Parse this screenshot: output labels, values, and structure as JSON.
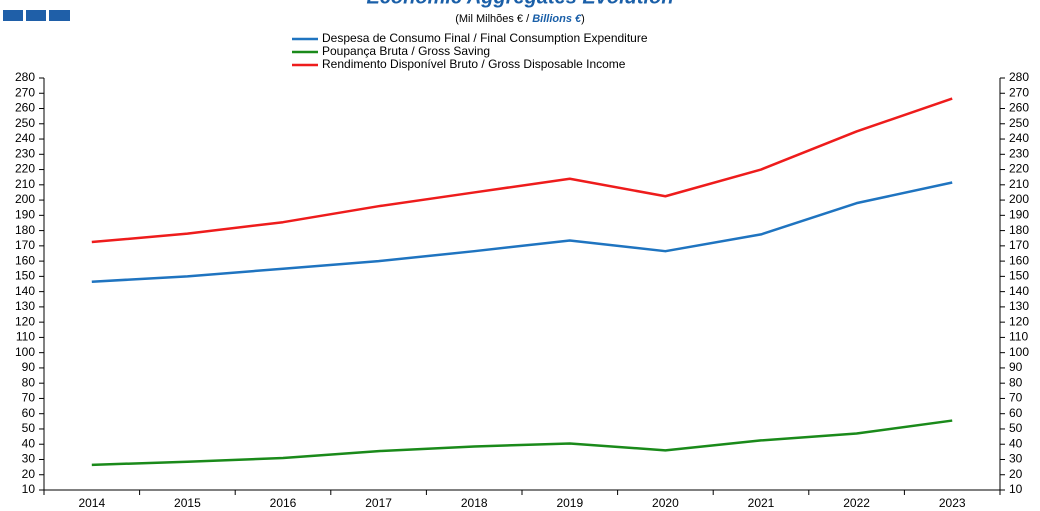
{
  "chart_data": {
    "type": "line",
    "title": "Economic Aggregates Evolution",
    "subtitle": [
      "(Mil Milhões € / ",
      "Billions €",
      ")"
    ],
    "categories": [
      "2014",
      "2015",
      "2016",
      "2017",
      "2018",
      "2019",
      "2020",
      "2021",
      "2022",
      "2023"
    ],
    "series": [
      {
        "name": "Despesa de Consumo Final / Final Consumption Expenditure",
        "color": "#1f74c0",
        "values": [
          146.5,
          150,
          155,
          160,
          166.5,
          173.5,
          166.5,
          177.5,
          198,
          211.5
        ]
      },
      {
        "name": "Poupança Bruta / Gross Saving",
        "color": "#1a8a1a",
        "values": [
          26.5,
          28.5,
          31,
          35.5,
          38.5,
          40.5,
          36,
          42.5,
          47,
          55.5
        ]
      },
      {
        "name": "Rendimento Disponível Bruto / Gross Disposable Income",
        "color": "#ee1c1c",
        "values": [
          172.5,
          178,
          185.5,
          196,
          205,
          214,
          202.5,
          220,
          245,
          266.5
        ]
      }
    ],
    "ylim": [
      10,
      280
    ],
    "yticks": [
      10,
      20,
      30,
      40,
      50,
      60,
      70,
      80,
      90,
      100,
      110,
      120,
      130,
      140,
      150,
      160,
      170,
      180,
      190,
      200,
      210,
      220,
      230,
      240,
      250,
      260,
      270,
      280
    ]
  }
}
